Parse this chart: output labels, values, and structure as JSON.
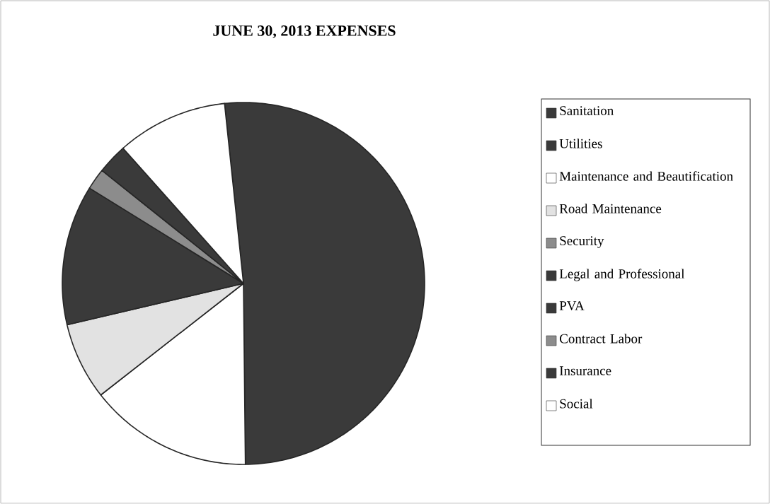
{
  "chart_data": {
    "type": "pie",
    "title": "JUNE 30, 2013 EXPENSES",
    "categories": [
      "Sanitation",
      "Utilities",
      "Maintenance and Beautification",
      "Road Maintenance",
      "Security",
      "Legal and Professional",
      "PVA",
      "Contract Labor",
      "Insurance",
      "Social"
    ],
    "values": [
      51.5,
      0,
      14.6,
      6.9,
      0,
      12.5,
      0,
      1.9,
      2.7,
      9.9
    ],
    "colors": [
      "#3a3a3a",
      "#3a3a3a",
      "#ffffff",
      "#e2e2e2",
      "#8c8c8c",
      "#3a3a3a",
      "#3a3a3a",
      "#8c8c8c",
      "#3a3a3a",
      "#ffffff"
    ],
    "legend": "right"
  }
}
